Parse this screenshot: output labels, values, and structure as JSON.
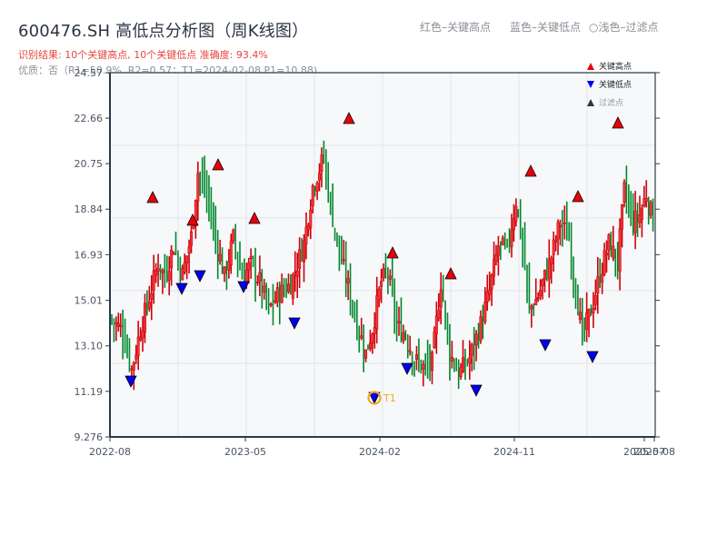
{
  "header": {
    "title": "600476.SH 高低点分析图（周K线图）",
    "result_line": "识别结果: 10个关键高点, 10个关键低点   准确度: 93.4%",
    "quality_line": "优质：否（R1=50.9%, R2=0.57；T1=2024-02-08 P1=10.88)"
  },
  "top_legend": {
    "red": "红色–关键高点",
    "blue": "蓝色–关键低点",
    "light": "○浅色–过滤点"
  },
  "legend": {
    "items": [
      {
        "label": "关键高点",
        "marker": "triangle-up",
        "color": "#e8000b"
      },
      {
        "label": "关键低点",
        "marker": "triangle-down",
        "color": "#0000ee"
      },
      {
        "label": "过滤点",
        "marker": "triangle-up-hollow",
        "color": "#f5c6c6"
      }
    ]
  },
  "colors": {
    "up": "#d0000a",
    "down": "#00882d",
    "high_marker": "#e8000b",
    "low_marker": "#0000ee",
    "t1_ring": "#f5a623",
    "axis": "#2b3a4a",
    "grid": "#e1e4e8",
    "plot_bg": "#f6f8fa"
  },
  "annotation": {
    "label": "T1",
    "date": "2024-02-08",
    "price": 10.88
  },
  "chart_data": {
    "type": "candlestick",
    "title": "600476.SH 高低点分析图（周K线图）",
    "xlabel": "",
    "ylabel": "",
    "ylim": [
      9.276,
      24.57
    ],
    "yticks": [
      9.276,
      11.19,
      13.1,
      15.01,
      16.93,
      18.84,
      20.75,
      22.66,
      24.57
    ],
    "ytick_labels": [
      "9.276",
      "11.19",
      "13.10",
      "15.01",
      "16.93",
      "18.84",
      "20.75",
      "22.66",
      "24.57"
    ],
    "xticks": [
      "2022-08",
      "2023-05",
      "2024-02",
      "2024-11",
      "2025-07",
      "2025-08"
    ],
    "grid": true,
    "legend_position": "upper right",
    "key_highs": [
      {
        "approx_date": "2022-11",
        "price": 19.0
      },
      {
        "approx_date": "2023-02",
        "price": 18.0
      },
      {
        "approx_date": "2023-03",
        "price": 20.4
      },
      {
        "approx_date": "2023-05",
        "price": 18.2
      },
      {
        "approx_date": "2023-11",
        "price": 22.6
      },
      {
        "approx_date": "2024-02",
        "price": 16.8
      },
      {
        "approx_date": "2024-05",
        "price": 16.0
      },
      {
        "approx_date": "2024-10",
        "price": 20.3
      },
      {
        "approx_date": "2025-01",
        "price": 19.1
      },
      {
        "approx_date": "2025-04",
        "price": 22.4
      }
    ],
    "key_lows": [
      {
        "approx_date": "2022-09",
        "price": 11.6
      },
      {
        "approx_date": "2023-01",
        "price": 15.6
      },
      {
        "approx_date": "2023-02",
        "price": 16.1
      },
      {
        "approx_date": "2023-05",
        "price": 15.6
      },
      {
        "approx_date": "2023-08",
        "price": 14.3
      },
      {
        "approx_date": "2024-02",
        "price": 10.88
      },
      {
        "approx_date": "2024-03",
        "price": 12.2
      },
      {
        "approx_date": "2024-07",
        "price": 11.2
      },
      {
        "approx_date": "2024-11",
        "price": 13.1
      },
      {
        "approx_date": "2025-02",
        "price": 12.6
      }
    ],
    "summary": {
      "key_high_count": 10,
      "key_low_count": 10,
      "accuracy_pct": 93.4
    }
  }
}
